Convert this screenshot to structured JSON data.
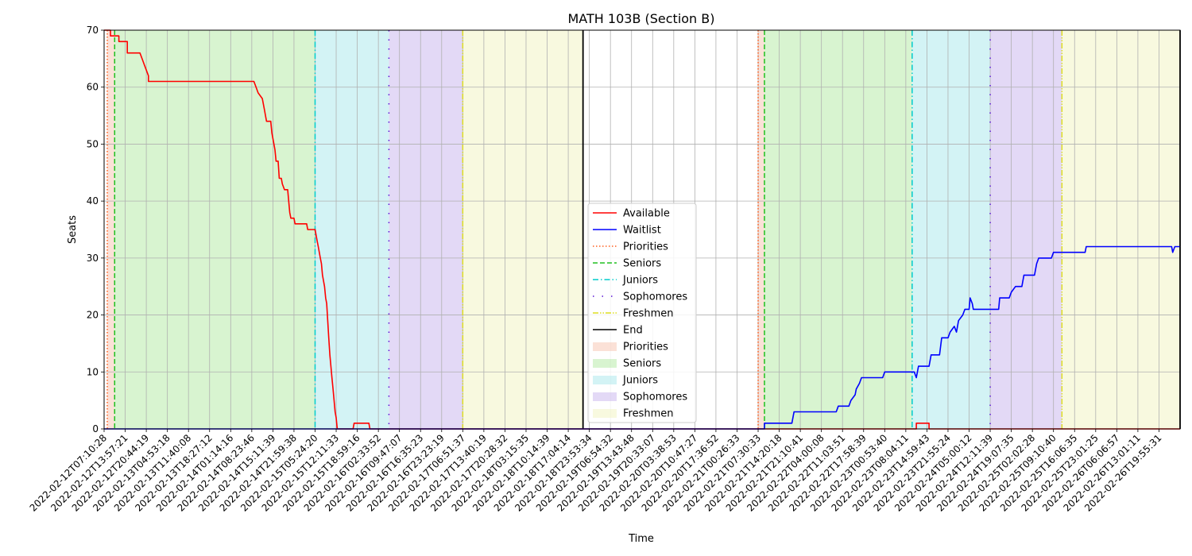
{
  "chart_data": {
    "type": "line",
    "title": "MATH 103B (Section B)",
    "xlabel": "Time",
    "ylabel": "Seats",
    "ylim": [
      0,
      70
    ],
    "yticks": [
      0,
      10,
      20,
      30,
      40,
      50,
      60,
      70
    ],
    "grid": true,
    "legend_position": "lower center",
    "x_tick_labels": [
      "2022-02-12T07:10:28",
      "2022-02-12T13:57:21",
      "2022-02-12T20:44:19",
      "2022-02-13T04:53:18",
      "2022-02-13T11:40:08",
      "2022-02-13T18:27:12",
      "2022-02-14T01:14:16",
      "2022-02-14T08:23:46",
      "2022-02-14T15:11:39",
      "2022-02-14T21:59:38",
      "2022-02-15T05:24:20",
      "2022-02-15T12:11:33",
      "2022-02-15T18:59:16",
      "2022-02-16T02:33:52",
      "2022-02-16T09:47:07",
      "2022-02-16T16:35:23",
      "2022-02-16T23:23:19",
      "2022-02-17T06:51:37",
      "2022-02-17T13:40:19",
      "2022-02-17T20:28:32",
      "2022-02-18T03:15:35",
      "2022-02-18T10:14:39",
      "2022-02-18T17:04:14",
      "2022-02-18T23:53:34",
      "2022-02-19T06:54:32",
      "2022-02-19T13:43:48",
      "2022-02-19T20:33:07",
      "2022-02-20T03:38:53",
      "2022-02-20T10:47:27",
      "2022-02-20T17:36:52",
      "2022-02-21T00:26:33",
      "2022-02-21T07:30:33",
      "2022-02-21T14:20:18",
      "2022-02-21T21:10:41",
      "2022-02-22T04:00:08",
      "2022-02-22T11:03:51",
      "2022-02-22T17:58:39",
      "2022-02-23T00:53:40",
      "2022-02-23T08:04:11",
      "2022-02-23T14:59:43",
      "2022-02-23T21:55:24",
      "2022-02-24T05:00:12",
      "2022-02-24T12:11:39",
      "2022-02-24T19:07:35",
      "2022-02-25T02:02:28",
      "2022-02-25T09:10:40",
      "2022-02-25T16:06:35",
      "2022-02-25T23:01:25",
      "2022-02-26T06:06:57",
      "2022-02-26T13:01:11",
      "2022-02-26T19:55:31"
    ],
    "x_range": [
      0,
      51
    ],
    "series": [
      {
        "name": "Available",
        "color": "#ff0000",
        "points": [
          [
            0,
            70
          ],
          [
            0.3,
            70
          ],
          [
            0.3,
            69
          ],
          [
            0.7,
            69
          ],
          [
            0.7,
            68
          ],
          [
            1.1,
            68
          ],
          [
            1.1,
            66
          ],
          [
            1.7,
            66
          ],
          [
            1.8,
            65
          ],
          [
            1.9,
            64
          ],
          [
            2.0,
            63
          ],
          [
            2.1,
            62
          ],
          [
            2.1,
            61
          ],
          [
            7.1,
            61
          ],
          [
            7.2,
            60
          ],
          [
            7.3,
            59
          ],
          [
            7.5,
            58
          ],
          [
            7.6,
            56
          ],
          [
            7.65,
            55
          ],
          [
            7.7,
            54
          ],
          [
            7.9,
            54
          ],
          [
            7.95,
            52
          ],
          [
            8.0,
            51
          ],
          [
            8.05,
            50
          ],
          [
            8.1,
            49
          ],
          [
            8.15,
            47
          ],
          [
            8.25,
            47
          ],
          [
            8.3,
            44
          ],
          [
            8.4,
            44
          ],
          [
            8.45,
            43
          ],
          [
            8.55,
            42
          ],
          [
            8.7,
            42
          ],
          [
            8.75,
            40
          ],
          [
            8.8,
            38
          ],
          [
            8.85,
            37
          ],
          [
            9.0,
            37
          ],
          [
            9.05,
            36
          ],
          [
            9.6,
            36
          ],
          [
            9.65,
            35
          ],
          [
            10.0,
            35
          ],
          [
            10.05,
            34
          ],
          [
            10.1,
            33
          ],
          [
            10.15,
            32
          ],
          [
            10.2,
            31
          ],
          [
            10.25,
            30
          ],
          [
            10.3,
            29
          ],
          [
            10.35,
            27
          ],
          [
            10.45,
            25
          ],
          [
            10.5,
            23
          ],
          [
            10.55,
            22
          ],
          [
            10.6,
            19
          ],
          [
            10.65,
            16
          ],
          [
            10.7,
            13
          ],
          [
            10.75,
            11
          ],
          [
            10.8,
            9
          ],
          [
            10.85,
            7
          ],
          [
            10.9,
            5
          ],
          [
            10.95,
            3
          ],
          [
            11.0,
            2
          ],
          [
            11.05,
            0
          ],
          [
            11.8,
            0
          ],
          [
            11.85,
            1
          ],
          [
            12.55,
            1
          ],
          [
            12.6,
            0
          ],
          [
            38.5,
            0
          ],
          [
            38.5,
            1
          ],
          [
            39.1,
            1
          ],
          [
            39.1,
            0
          ],
          [
            51,
            0
          ]
        ]
      },
      {
        "name": "Waitlist",
        "color": "#0000ff",
        "points": [
          [
            0,
            0
          ],
          [
            31.3,
            0
          ],
          [
            31.3,
            1
          ],
          [
            32.6,
            1
          ],
          [
            32.7,
            3
          ],
          [
            34.7,
            3
          ],
          [
            34.8,
            4
          ],
          [
            35.3,
            4
          ],
          [
            35.4,
            5
          ],
          [
            35.6,
            6
          ],
          [
            35.65,
            7
          ],
          [
            35.8,
            8
          ],
          [
            35.9,
            9
          ],
          [
            36.9,
            9
          ],
          [
            37.0,
            10
          ],
          [
            38.4,
            10
          ],
          [
            38.5,
            9
          ],
          [
            38.6,
            11
          ],
          [
            39.1,
            11
          ],
          [
            39.2,
            13
          ],
          [
            39.6,
            13
          ],
          [
            39.7,
            16
          ],
          [
            40.0,
            16
          ],
          [
            40.1,
            17
          ],
          [
            40.3,
            18
          ],
          [
            40.4,
            17
          ],
          [
            40.5,
            19
          ],
          [
            40.7,
            20
          ],
          [
            40.8,
            21
          ],
          [
            41.0,
            21
          ],
          [
            41.05,
            23
          ],
          [
            41.15,
            22
          ],
          [
            41.2,
            21
          ],
          [
            42.4,
            21
          ],
          [
            42.45,
            23
          ],
          [
            42.9,
            23
          ],
          [
            43.0,
            24
          ],
          [
            43.2,
            25
          ],
          [
            43.5,
            25
          ],
          [
            43.6,
            27
          ],
          [
            44.1,
            27
          ],
          [
            44.2,
            29
          ],
          [
            44.3,
            30
          ],
          [
            44.9,
            30
          ],
          [
            45.0,
            31
          ],
          [
            46.0,
            31
          ],
          [
            46.5,
            31
          ],
          [
            46.55,
            32
          ],
          [
            50.6,
            32
          ],
          [
            50.65,
            31
          ],
          [
            50.75,
            32
          ],
          [
            51,
            32
          ]
        ]
      }
    ],
    "phase_lines": [
      {
        "name": "Priorities",
        "color": "#ff6020",
        "style": "dotted",
        "xs": [
          0.15,
          31.0
        ]
      },
      {
        "name": "Seniors",
        "color": "#20c020",
        "style": "dashed",
        "xs": [
          0.5,
          31.3
        ]
      },
      {
        "name": "Juniors",
        "color": "#00cccc",
        "style": "dashdot",
        "xs": [
          10.0,
          38.3
        ]
      },
      {
        "name": "Sophomores",
        "color": "#5a12d6",
        "style": "dotsparse",
        "xs": [
          13.5,
          42.0
        ]
      },
      {
        "name": "Freshmen",
        "color": "#dddd20",
        "style": "dashdotdot",
        "xs": [
          17.0,
          45.4
        ]
      },
      {
        "name": "End",
        "color": "#000000",
        "style": "solid",
        "xs": [
          22.7,
          51.0
        ]
      }
    ],
    "phase_regions": [
      {
        "name": "Priorities",
        "color": "#f5b59a",
        "spans": [
          [
            0.15,
            0.5
          ],
          [
            31.0,
            31.3
          ]
        ]
      },
      {
        "name": "Seniors",
        "color": "#9ee38a",
        "spans": [
          [
            0.5,
            10.0
          ],
          [
            31.3,
            38.3
          ]
        ]
      },
      {
        "name": "Juniors",
        "color": "#92e2e6",
        "spans": [
          [
            10.0,
            13.5
          ],
          [
            38.3,
            42.0
          ]
        ]
      },
      {
        "name": "Sophomores",
        "color": "#b9a1e8",
        "spans": [
          [
            13.5,
            17.0
          ],
          [
            42.0,
            45.4
          ]
        ]
      },
      {
        "name": "Freshmen",
        "color": "#eef0b0",
        "spans": [
          [
            17.0,
            22.7
          ],
          [
            45.4,
            51.0
          ]
        ]
      }
    ],
    "legend": [
      {
        "label": "Available",
        "kind": "line",
        "color": "#ff0000",
        "style": "solid"
      },
      {
        "label": "Waitlist",
        "kind": "line",
        "color": "#0000ff",
        "style": "solid"
      },
      {
        "label": "Priorities",
        "kind": "line",
        "color": "#ff6020",
        "style": "dotted"
      },
      {
        "label": "Seniors",
        "kind": "line",
        "color": "#20c020",
        "style": "dashed"
      },
      {
        "label": "Juniors",
        "kind": "line",
        "color": "#00cccc",
        "style": "dashdot"
      },
      {
        "label": "Sophomores",
        "kind": "line",
        "color": "#5a12d6",
        "style": "dotsparse"
      },
      {
        "label": "Freshmen",
        "kind": "line",
        "color": "#dddd20",
        "style": "dashdotdot"
      },
      {
        "label": "End",
        "kind": "line",
        "color": "#000000",
        "style": "solid"
      },
      {
        "label": "Priorities",
        "kind": "patch",
        "color": "#f5b59a"
      },
      {
        "label": "Seniors",
        "kind": "patch",
        "color": "#9ee38a"
      },
      {
        "label": "Juniors",
        "kind": "patch",
        "color": "#92e2e6"
      },
      {
        "label": "Sophomores",
        "kind": "patch",
        "color": "#b9a1e8"
      },
      {
        "label": "Freshmen",
        "kind": "patch",
        "color": "#eef0b0"
      }
    ]
  }
}
